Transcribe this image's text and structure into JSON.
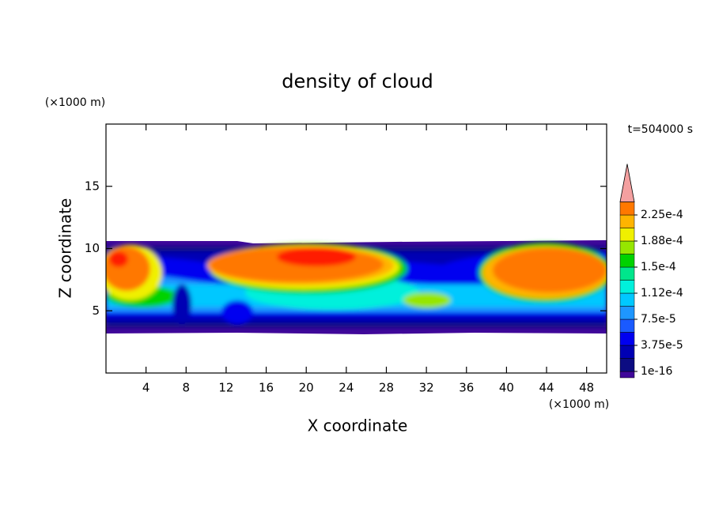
{
  "chart_data": {
    "type": "contour",
    "title": "density of cloud",
    "xlabel": "X coordinate",
    "ylabel": "Z coordinate",
    "xunit": "(×1000 m)",
    "yunit": "(×1000 m)",
    "time_label": "t=504000 s",
    "xlim": [
      0,
      50
    ],
    "xticks": [
      4,
      8,
      12,
      16,
      20,
      24,
      28,
      32,
      36,
      40,
      44,
      48
    ],
    "ylim": [
      0,
      20
    ],
    "yticks": [
      5,
      10,
      15
    ],
    "colorbar": {
      "levels": [
        1e-16,
        1.875e-05,
        3.75e-05,
        5.625e-05,
        7.5e-05,
        9.375e-05,
        0.0001125,
        0.00013125,
        0.00015,
        0.00016875,
        0.0001875,
        0.00020625,
        0.000225,
        0.00024375
      ],
      "colors": [
        "#40089a",
        "#0c0c82",
        "#0000b4",
        "#0000f0",
        "#1a5aff",
        "#1e96ff",
        "#00c8ff",
        "#00f0dc",
        "#00e68c",
        "#00d200",
        "#96e600",
        "#f0f000",
        "#ffb400",
        "#ff7800",
        "#ff1e00"
      ],
      "over_color": "#f4a0a0",
      "ticks": [
        {
          "value": 1e-16,
          "label": "1e-16"
        },
        {
          "value": 3.75e-05,
          "label": "3.75e-5"
        },
        {
          "value": 7.5e-05,
          "label": "7.5e-5"
        },
        {
          "value": 0.0001125,
          "label": "1.12e-4"
        },
        {
          "value": 0.00015,
          "label": "1.5e-4"
        },
        {
          "value": 0.0001875,
          "label": "1.88e-4"
        },
        {
          "value": 0.000225,
          "label": "2.25e-4"
        }
      ]
    }
  }
}
